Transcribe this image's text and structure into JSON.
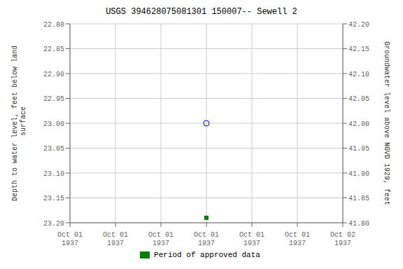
{
  "chart_data": {
    "type": "scatter",
    "title": "USGS 394628075081301 150007-- Sewell 2",
    "ylabel": "Depth to water level, feet below land\n surface",
    "y2label": "Groundwater level above NGVD 1929, feet",
    "categories": [
      "Oct 01\n1937",
      "Oct 01\n1937",
      "Oct 01\n1937",
      "Oct 01\n1937",
      "Oct 01\n1937",
      "Oct 01\n1937",
      "Oct 02\n1937"
    ],
    "series": [
      {
        "color": "blue",
        "marker": "open_circle",
        "values": [
          null,
          null,
          null,
          23.0,
          null,
          null,
          null
        ]
      },
      {
        "name": "Period of approved data",
        "color": "#008000",
        "marker": "square",
        "values": [
          null,
          null,
          null,
          23.19,
          null,
          null,
          null
        ]
      }
    ],
    "ylim": [
      23.2,
      22.8
    ],
    "yticks": [
      {
        "value": 22.8,
        "label": "22.80"
      },
      {
        "value": 22.85,
        "label": "22.85"
      },
      {
        "value": 22.9,
        "label": "22.90"
      },
      {
        "value": 22.95,
        "label": "22.95"
      },
      {
        "value": 23.0,
        "label": "23.00"
      },
      {
        "value": 23.05,
        "label": "23.05"
      },
      {
        "value": 23.1,
        "label": "23.10"
      },
      {
        "value": 23.15,
        "label": "23.15"
      },
      {
        "value": 23.2,
        "label": "23.20"
      }
    ],
    "y2lim": [
      41.8,
      42.2
    ],
    "y2ticks": [
      {
        "value": 41.8,
        "label": "41.80"
      },
      {
        "value": 41.85,
        "label": "41.85"
      },
      {
        "value": 41.9,
        "label": "41.90"
      },
      {
        "value": 41.95,
        "label": "41.95"
      },
      {
        "value": 42.0,
        "label": "42.00"
      },
      {
        "value": 42.05,
        "label": "42.05"
      },
      {
        "value": 42.1,
        "label": "42.10"
      },
      {
        "value": 42.15,
        "label": "42.15"
      },
      {
        "value": 42.2,
        "label": "42.20"
      }
    ],
    "grid": true,
    "legend": "bottom"
  }
}
